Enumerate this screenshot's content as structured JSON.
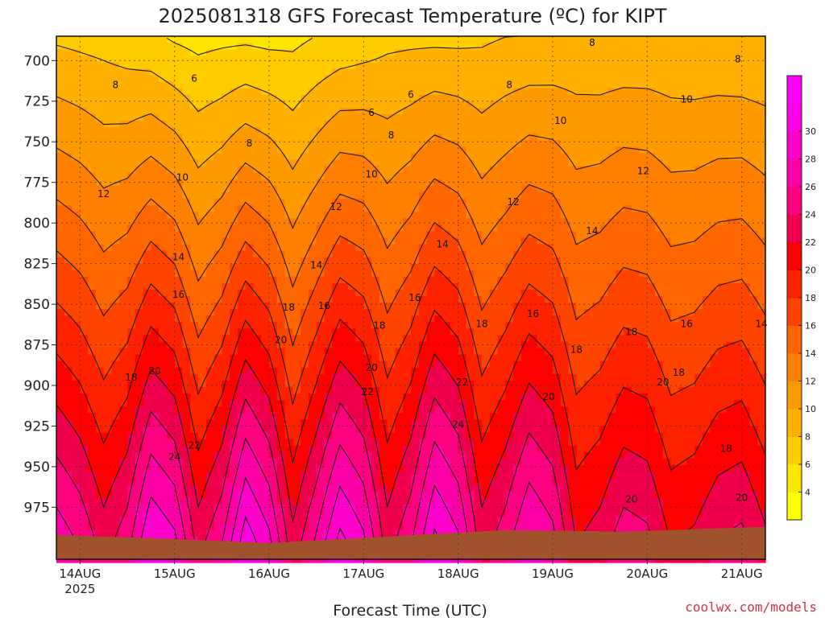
{
  "title": "2025081318 GFS Forecast Temperature (ºC) for KIPT",
  "credit": "coolwx.com/models",
  "chart_data": {
    "type": "heatmap",
    "title": "2025081318 GFS Forecast Temperature (ºC) for KIPT",
    "xlabel": "Forecast Time (UTC)",
    "ylabel": "",
    "x_ticks": [
      {
        "label": "14AUG",
        "sub": "2025",
        "hour": 6
      },
      {
        "label": "15AUG",
        "sub": "",
        "hour": 30
      },
      {
        "label": "16AUG",
        "sub": "",
        "hour": 54
      },
      {
        "label": "17AUG",
        "sub": "",
        "hour": 78
      },
      {
        "label": "18AUG",
        "sub": "",
        "hour": 102
      },
      {
        "label": "19AUG",
        "sub": "",
        "hour": 126
      },
      {
        "label": "20AUG",
        "sub": "",
        "hour": 150
      },
      {
        "label": "21AUG",
        "sub": "",
        "hour": 174
      }
    ],
    "x_range_hours": [
      0,
      180
    ],
    "y_ticks": [
      "700",
      "725",
      "750",
      "775",
      "800",
      "825",
      "850",
      "875",
      "900",
      "925",
      "950",
      "975"
    ],
    "y_range_hpa": [
      685,
      1007
    ],
    "grid": true,
    "colorbar": {
      "placement": "right",
      "labels": [
        "4",
        "6",
        "8",
        "10",
        "12",
        "14",
        "16",
        "18",
        "20",
        "22",
        "24",
        "26",
        "28",
        "30"
      ],
      "colors": [
        "#ffff00",
        "#ffe600",
        "#ffcc00",
        "#ffb000",
        "#ff9900",
        "#ff8000",
        "#ff6600",
        "#ff4400",
        "#ff2200",
        "#ff0000",
        "#f0004c",
        "#ff0080",
        "#ff00a8",
        "#ff00cc",
        "#ff00e6",
        "#ff00ff"
      ]
    },
    "series_profile": [
      {
        "hour": 0,
        "t700": 8.6,
        "t975": 26.0
      },
      {
        "hour": 6,
        "t700": 8.3,
        "t975": 24.5
      },
      {
        "hour": 12,
        "t700": 8.0,
        "t975": 22.0
      },
      {
        "hour": 18,
        "t700": 7.7,
        "t975": 24.0
      },
      {
        "hour": 24,
        "t700": 7.5,
        "t975": 28.5
      },
      {
        "hour": 30,
        "t700": 6.8,
        "t975": 27.0
      },
      {
        "hour": 36,
        "t700": 6.2,
        "t975": 22.0
      },
      {
        "hour": 42,
        "t700": 6.5,
        "t975": 24.5
      },
      {
        "hour": 48,
        "t700": 6.8,
        "t975": 29.5
      },
      {
        "hour": 54,
        "t700": 6.5,
        "t975": 27.0
      },
      {
        "hour": 60,
        "t700": 6.3,
        "t975": 21.5
      },
      {
        "hour": 66,
        "t700": 7.0,
        "t975": 25.0
      },
      {
        "hour": 72,
        "t700": 7.6,
        "t975": 29.0
      },
      {
        "hour": 78,
        "t700": 7.9,
        "t975": 27.0
      },
      {
        "hour": 84,
        "t700": 8.2,
        "t975": 22.0
      },
      {
        "hour": 90,
        "t700": 8.4,
        "t975": 24.5
      },
      {
        "hour": 96,
        "t700": 8.6,
        "t975": 29.0
      },
      {
        "hour": 102,
        "t700": 8.5,
        "t975": 27.0
      },
      {
        "hour": 108,
        "t700": 8.4,
        "t975": 22.0
      },
      {
        "hour": 114,
        "t700": 8.8,
        "t975": 24.0
      },
      {
        "hour": 120,
        "t700": 9.0,
        "t975": 27.0
      },
      {
        "hour": 126,
        "t700": 9.1,
        "t975": 25.5
      },
      {
        "hour": 132,
        "t700": 9.1,
        "t975": 21.0
      },
      {
        "hour": 138,
        "t700": 9.0,
        "t975": 22.0
      },
      {
        "hour": 144,
        "t700": 9.1,
        "t975": 24.0
      },
      {
        "hour": 150,
        "t700": 9.1,
        "t975": 23.5
      },
      {
        "hour": 156,
        "t700": 9.0,
        "t975": 21.0
      },
      {
        "hour": 162,
        "t700": 8.9,
        "t975": 21.5
      },
      {
        "hour": 168,
        "t700": 8.9,
        "t975": 23.0
      },
      {
        "hour": 174,
        "t700": 8.8,
        "t975": 23.5
      },
      {
        "hour": 180,
        "t700": 8.7,
        "t975": 21.5
      }
    ],
    "terrain_hpa": [
      {
        "hour": 0,
        "p": 992
      },
      {
        "hour": 24,
        "p": 994
      },
      {
        "hour": 54,
        "p": 997
      },
      {
        "hour": 84,
        "p": 993
      },
      {
        "hour": 114,
        "p": 989
      },
      {
        "hour": 144,
        "p": 990
      },
      {
        "hour": 180,
        "p": 987
      }
    ],
    "contour_labels": [
      {
        "text": "8",
        "hour": 15,
        "p": 715
      },
      {
        "text": "6",
        "hour": 35,
        "p": 711
      },
      {
        "text": "6",
        "hour": 90,
        "p": 721
      },
      {
        "text": "6",
        "hour": 80,
        "p": 732
      },
      {
        "text": "8",
        "hour": 49,
        "p": 751
      },
      {
        "text": "8",
        "hour": 85,
        "p": 746
      },
      {
        "text": "8",
        "hour": 115,
        "p": 715
      },
      {
        "text": "8",
        "hour": 136,
        "p": 689
      },
      {
        "text": "8",
        "hour": 173,
        "p": 699
      },
      {
        "text": "10",
        "hour": 32,
        "p": 772
      },
      {
        "text": "10",
        "hour": 80,
        "p": 770
      },
      {
        "text": "10",
        "hour": 128,
        "p": 737
      },
      {
        "text": "10",
        "hour": 160,
        "p": 724
      },
      {
        "text": "12",
        "hour": 12,
        "p": 782
      },
      {
        "text": "12",
        "hour": 71,
        "p": 790
      },
      {
        "text": "12",
        "hour": 116,
        "p": 787
      },
      {
        "text": "12",
        "hour": 149,
        "p": 768
      },
      {
        "text": "14",
        "hour": 31,
        "p": 821
      },
      {
        "text": "14",
        "hour": 66,
        "p": 826
      },
      {
        "text": "14",
        "hour": 98,
        "p": 813
      },
      {
        "text": "14",
        "hour": 136,
        "p": 805
      },
      {
        "text": "16",
        "hour": 31,
        "p": 844
      },
      {
        "text": "16",
        "hour": 68,
        "p": 851
      },
      {
        "text": "16",
        "hour": 91,
        "p": 846
      },
      {
        "text": "16",
        "hour": 121,
        "p": 856
      },
      {
        "text": "16",
        "hour": 160,
        "p": 862
      },
      {
        "text": "18",
        "hour": 19,
        "p": 895
      },
      {
        "text": "18",
        "hour": 59,
        "p": 852
      },
      {
        "text": "18",
        "hour": 82,
        "p": 863
      },
      {
        "text": "18",
        "hour": 108,
        "p": 862
      },
      {
        "text": "18",
        "hour": 132,
        "p": 878
      },
      {
        "text": "18",
        "hour": 146,
        "p": 867
      },
      {
        "text": "18",
        "hour": 158,
        "p": 892
      },
      {
        "text": "20",
        "hour": 25,
        "p": 891
      },
      {
        "text": "20",
        "hour": 57,
        "p": 872
      },
      {
        "text": "20",
        "hour": 80,
        "p": 889
      },
      {
        "text": "20",
        "hour": 125,
        "p": 907
      },
      {
        "text": "20",
        "hour": 154,
        "p": 898
      },
      {
        "text": "22",
        "hour": 35,
        "p": 937
      },
      {
        "text": "22",
        "hour": 79,
        "p": 904
      },
      {
        "text": "22",
        "hour": 103,
        "p": 898
      },
      {
        "text": "24",
        "hour": 30,
        "p": 944
      },
      {
        "text": "24",
        "hour": 102,
        "p": 924
      },
      {
        "text": "20",
        "hour": 146,
        "p": 970
      },
      {
        "text": "20",
        "hour": 174,
        "p": 969
      },
      {
        "text": "18",
        "hour": 170,
        "p": 939
      },
      {
        "text": "14",
        "hour": 179,
        "p": 862
      }
    ]
  }
}
